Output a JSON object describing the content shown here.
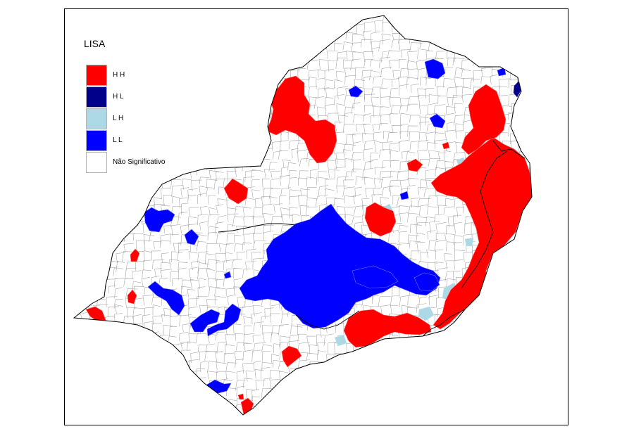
{
  "legend": {
    "title": "LISA",
    "items": [
      {
        "label": "H H",
        "color": "#ff0000"
      },
      {
        "label": "H L",
        "color": "#00008b"
      },
      {
        "label": "L H",
        "color": "#add8e6"
      },
      {
        "label": "L L",
        "color": "#0000ff"
      },
      {
        "label": "Não Significativo",
        "color": "#ffffff"
      }
    ]
  },
  "colors": {
    "boundary": "#9a9a9a",
    "state_border": "#000000",
    "frame": "#000000"
  }
}
